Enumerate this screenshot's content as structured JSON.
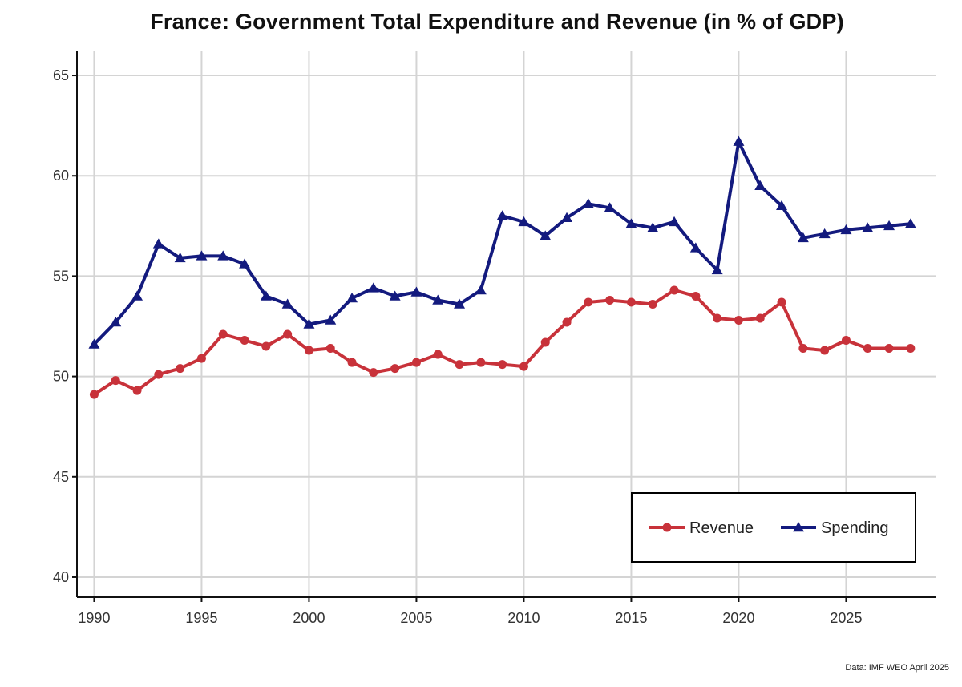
{
  "chart_data": {
    "type": "line",
    "title": "France: Government Total Expenditure and Revenue (in % of GDP)",
    "xlabel": "",
    "ylabel": "",
    "xlim": [
      1989.2,
      2029.2
    ],
    "ylim": [
      39.0,
      66.2
    ],
    "x_ticks": [
      1990,
      1995,
      2000,
      2005,
      2010,
      2015,
      2020,
      2025
    ],
    "y_ticks": [
      40,
      45,
      50,
      55,
      60,
      65
    ],
    "grid": true,
    "legend_position": "bottom-right",
    "x": [
      1990,
      1991,
      1992,
      1993,
      1994,
      1995,
      1996,
      1997,
      1998,
      1999,
      2000,
      2001,
      2002,
      2003,
      2004,
      2005,
      2006,
      2007,
      2008,
      2009,
      2010,
      2011,
      2012,
      2013,
      2014,
      2015,
      2016,
      2017,
      2018,
      2019,
      2020,
      2021,
      2022,
      2023,
      2024,
      2025,
      2026,
      2027,
      2028
    ],
    "series": [
      {
        "name": "Revenue",
        "color": "#c8323a",
        "marker": "circle",
        "values": [
          49.1,
          49.8,
          49.3,
          50.1,
          50.4,
          50.9,
          52.1,
          51.8,
          51.5,
          52.1,
          51.3,
          51.4,
          50.7,
          50.2,
          50.4,
          50.7,
          51.1,
          50.6,
          50.7,
          50.6,
          50.5,
          51.7,
          52.7,
          53.7,
          53.8,
          53.7,
          53.6,
          54.3,
          54.0,
          52.9,
          52.8,
          52.9,
          53.7,
          51.4,
          51.3,
          51.8,
          51.4,
          51.4,
          51.4
        ]
      },
      {
        "name": "Spending",
        "color": "#131a7e",
        "marker": "triangle",
        "values": [
          51.6,
          52.7,
          54.0,
          56.6,
          55.9,
          56.0,
          56.0,
          55.6,
          54.0,
          53.6,
          52.6,
          52.8,
          53.9,
          54.4,
          54.0,
          54.2,
          53.8,
          53.6,
          54.3,
          58.0,
          57.7,
          57.0,
          57.9,
          58.6,
          58.4,
          57.6,
          57.4,
          57.7,
          56.4,
          55.3,
          61.7,
          59.5,
          58.5,
          56.9,
          57.1,
          57.3,
          57.4,
          57.5,
          57.6
        ]
      }
    ],
    "source": "Data: IMF WEO April 2025"
  },
  "colors": {
    "revenue": "#c8323a",
    "spending": "#131a7e",
    "grid": "#d4d4d4",
    "axis": "#111111"
  }
}
